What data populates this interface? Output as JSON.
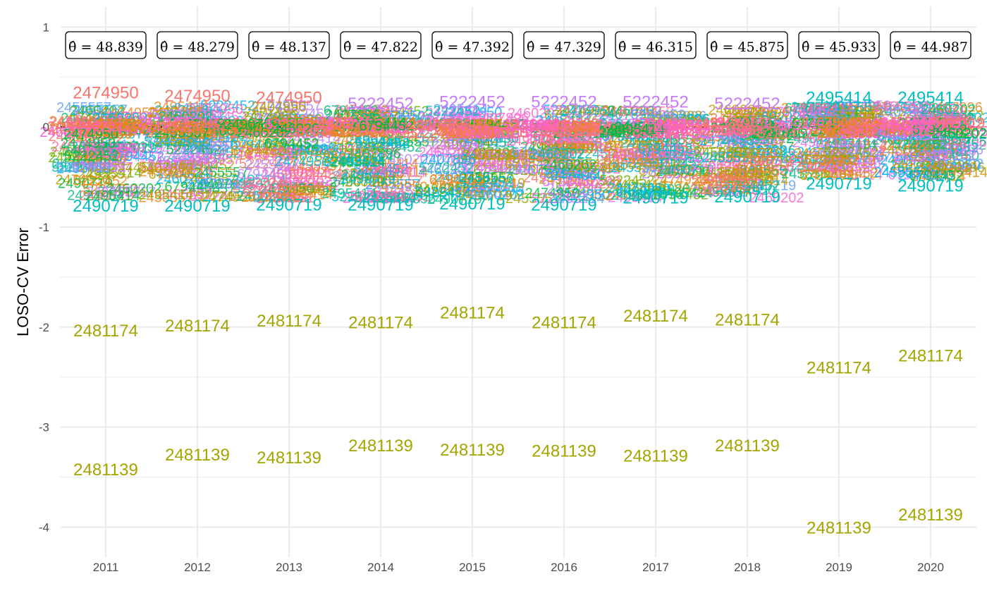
{
  "chart_data": {
    "type": "scatter",
    "title": "",
    "xlabel": "",
    "ylabel": "LOSO-CV Error",
    "ylim": [
      -4.3,
      1.2
    ],
    "yticks": [
      1,
      0,
      -1,
      -2,
      -3,
      -4
    ],
    "categories": [
      "2011",
      "2012",
      "2013",
      "2014",
      "2015",
      "2016",
      "2017",
      "2018",
      "2019",
      "2020"
    ],
    "grid": true,
    "legend": "none",
    "reference_line_y": 0,
    "theta_hat_label": "θ̂ = ",
    "theta_hat": [
      "48.839",
      "48.279",
      "48.137",
      "47.822",
      "47.392",
      "47.329",
      "46.315",
      "45.875",
      "45.933",
      "44.987"
    ],
    "labeled_points": [
      {
        "id": "2481174",
        "color": "#a3a500",
        "values": [
          -2.03,
          -1.98,
          -1.93,
          -1.95,
          -1.85,
          -1.95,
          -1.88,
          -1.92,
          -2.4,
          -2.28
        ]
      },
      {
        "id": "2481139",
        "color": "#a3a500",
        "values": [
          -3.42,
          -3.27,
          -3.3,
          -3.18,
          -3.22,
          -3.23,
          -3.28,
          -3.18,
          -4.0,
          -3.87
        ]
      },
      {
        "id": "2474950",
        "color": "#f8766d",
        "values": [
          0.35,
          0.32,
          0.3,
          null,
          null,
          null,
          null,
          null,
          null,
          null
        ]
      },
      {
        "id": "5222452",
        "color": "#c77cff",
        "values": [
          null,
          null,
          null,
          0.24,
          0.26,
          0.26,
          0.26,
          0.24,
          null,
          null
        ]
      },
      {
        "id": "2495414",
        "color": "#00bfc4",
        "values": [
          null,
          null,
          null,
          null,
          null,
          null,
          null,
          null,
          0.3,
          0.3
        ]
      },
      {
        "id": "2490719",
        "color": "#00bfc4",
        "values": [
          -0.78,
          -0.78,
          -0.77,
          -0.77,
          -0.76,
          -0.77,
          -0.7,
          -0.69,
          -0.56,
          -0.58
        ]
      }
    ],
    "station_ids": [
      "2474950",
      "5222452",
      "2495414",
      "2490719",
      "2407896",
      "2455557",
      "6794452",
      "2460202"
    ]
  }
}
